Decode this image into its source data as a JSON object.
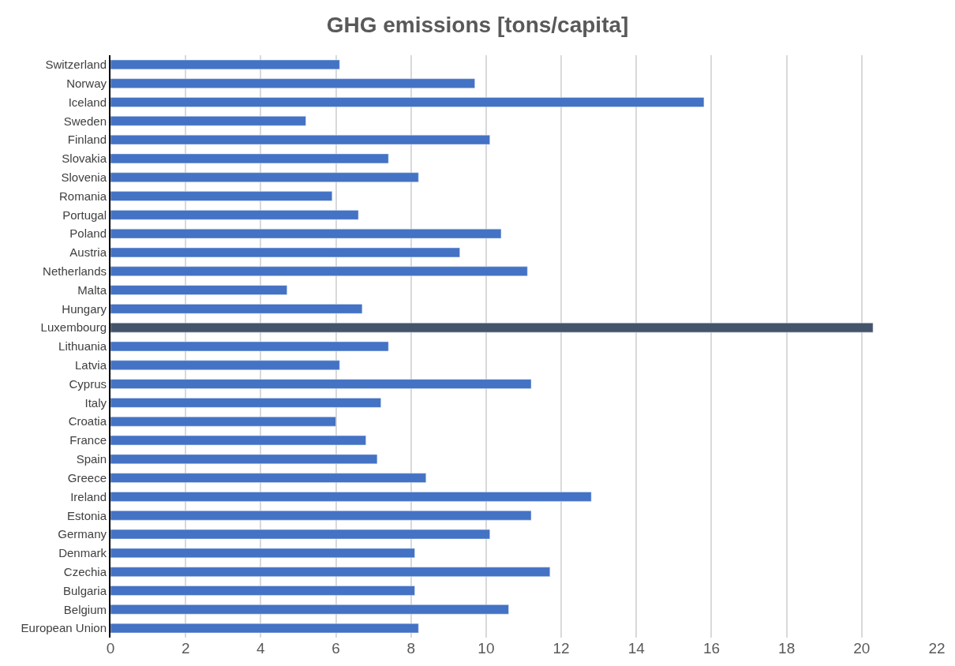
{
  "chart_data": {
    "type": "bar",
    "orientation": "horizontal",
    "title": "GHG emissions [tons/capita]",
    "categories": [
      "Switzerland",
      "Norway",
      "Iceland",
      "Sweden",
      "Finland",
      "Slovakia",
      "Slovenia",
      "Romania",
      "Portugal",
      "Poland",
      "Austria",
      "Netherlands",
      "Malta",
      "Hungary",
      "Luxembourg",
      "Lithuania",
      "Latvia",
      "Cyprus",
      "Italy",
      "Croatia",
      "France",
      "Spain",
      "Greece",
      "Ireland",
      "Estonia",
      "Germany",
      "Denmark",
      "Czechia",
      "Bulgaria",
      "Belgium",
      "European Union"
    ],
    "values": [
      6.1,
      9.7,
      15.8,
      5.2,
      10.1,
      7.4,
      8.2,
      5.9,
      6.6,
      10.4,
      9.3,
      11.1,
      4.7,
      6.7,
      20.3,
      7.4,
      6.1,
      11.2,
      7.2,
      6.0,
      6.8,
      7.1,
      8.4,
      12.8,
      11.2,
      10.1,
      8.1,
      11.7,
      8.1,
      10.6,
      8.2
    ],
    "colors": [
      "#4472c4",
      "#4472c4",
      "#4472c4",
      "#4472c4",
      "#4472c4",
      "#4472c4",
      "#4472c4",
      "#4472c4",
      "#4472c4",
      "#4472c4",
      "#4472c4",
      "#4472c4",
      "#4472c4",
      "#4472c4",
      "#44546a",
      "#4472c4",
      "#4472c4",
      "#4472c4",
      "#4472c4",
      "#4472c4",
      "#4472c4",
      "#4472c4",
      "#4472c4",
      "#4472c4",
      "#4472c4",
      "#4472c4",
      "#4472c4",
      "#4472c4",
      "#4472c4",
      "#4472c4",
      "#4472c4"
    ],
    "xlim": [
      0,
      22
    ],
    "xticks": [
      0,
      2,
      4,
      6,
      8,
      10,
      12,
      14,
      16,
      18,
      20,
      22
    ],
    "grid": "x"
  }
}
